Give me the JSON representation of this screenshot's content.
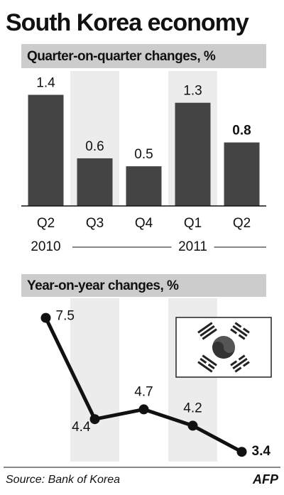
{
  "title": "South Korea economy",
  "source": "Source: Bank of Korea",
  "logo": "AFP",
  "chart_data": [
    {
      "type": "bar",
      "title": "Quarter-on-quarter changes, %",
      "categories": [
        "Q2",
        "Q3",
        "Q4",
        "Q1",
        "Q2"
      ],
      "year_labels": [
        "2010",
        "2011"
      ],
      "values": [
        1.4,
        0.6,
        0.5,
        1.3,
        0.8
      ],
      "color": "#444",
      "ylim": [
        0,
        1.7
      ]
    },
    {
      "type": "line",
      "title": "Year-on-year changes, %",
      "values": [
        7.5,
        4.4,
        4.7,
        4.2,
        3.4
      ],
      "color": "#111",
      "ylim": [
        3.1,
        8.1
      ]
    }
  ]
}
